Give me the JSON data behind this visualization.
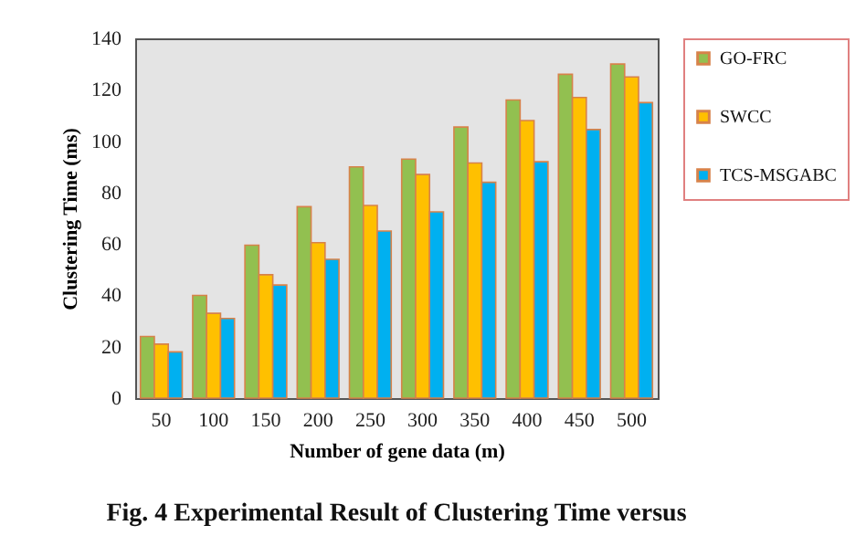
{
  "chart_data": {
    "type": "bar",
    "xlabel": "Number of gene data  (m)",
    "ylabel": "Clustering  Time  (ms)",
    "categories": [
      "50",
      "100",
      "150",
      "200",
      "250",
      "300",
      "350",
      "400",
      "450",
      "500"
    ],
    "series": [
      {
        "name": "GO-FRC",
        "color": "#92c050",
        "values": [
          24,
          40,
          59.5,
          74.5,
          90,
          93,
          105.5,
          116,
          126,
          130
        ]
      },
      {
        "name": "SWCC",
        "color": "#ffc000",
        "values": [
          21,
          33,
          48,
          60.5,
          75,
          87,
          91.5,
          108,
          117,
          125
        ]
      },
      {
        "name": "TCS-MSGABC",
        "color": "#00b0f0",
        "values": [
          18,
          31,
          44,
          54,
          65,
          72.5,
          84,
          92,
          104.5,
          115
        ]
      }
    ],
    "ylim": [
      0,
      140
    ],
    "yticks": [
      0,
      20,
      40,
      60,
      80,
      100,
      120,
      140
    ],
    "legend": "right",
    "annotations": [
      "Fig. 4 Experimental Result of Clustering Time versus"
    ]
  }
}
